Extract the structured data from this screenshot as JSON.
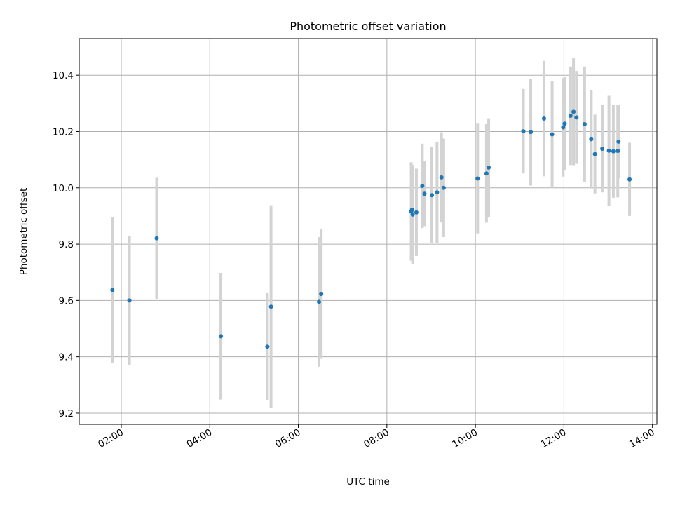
{
  "chart_data": {
    "type": "scatter",
    "title": "Photometric offset variation",
    "xlabel": "UTC time",
    "ylabel": "Photometric offset",
    "x_unit": "hours UTC",
    "xlim": [
      "01:03",
      "14:06"
    ],
    "ylim": [
      9.16,
      10.53
    ],
    "xticks": [
      "02:00",
      "04:00",
      "06:00",
      "08:00",
      "10:00",
      "12:00",
      "14:00"
    ],
    "yticks": [
      "9.2",
      "9.4",
      "9.6",
      "9.8",
      "10.0",
      "10.2",
      "10.4"
    ],
    "grid": true,
    "colors": {
      "point": "#1f77b4",
      "errorbar": "#d3d3d3",
      "grid": "#b0b0b0"
    },
    "series": [
      {
        "points": [
          {
            "x": "01:48",
            "y": 9.637,
            "err": 0.26
          },
          {
            "x": "02:11",
            "y": 9.6,
            "err": 0.23
          },
          {
            "x": "02:48",
            "y": 9.821,
            "err": 0.215
          },
          {
            "x": "04:15",
            "y": 9.473,
            "err": 0.225
          },
          {
            "x": "05:18",
            "y": 9.436,
            "err": 0.19
          },
          {
            "x": "05:23",
            "y": 9.578,
            "err": 0.36
          },
          {
            "x": "06:28",
            "y": 9.595,
            "err": 0.23
          },
          {
            "x": "06:31",
            "y": 9.623,
            "err": 0.23
          },
          {
            "x": "08:33",
            "y": 9.916,
            "err": 0.175
          },
          {
            "x": "08:34",
            "y": 9.922,
            "err": 0.16
          },
          {
            "x": "08:35",
            "y": 9.905,
            "err": 0.175
          },
          {
            "x": "08:40",
            "y": 9.913,
            "err": 0.155
          },
          {
            "x": "08:48",
            "y": 10.007,
            "err": 0.15
          },
          {
            "x": "08:51",
            "y": 9.979,
            "err": 0.115
          },
          {
            "x": "09:01",
            "y": 9.974,
            "err": 0.17
          },
          {
            "x": "09:08",
            "y": 9.984,
            "err": 0.18
          },
          {
            "x": "09:14",
            "y": 10.037,
            "err": 0.16
          },
          {
            "x": "09:17",
            "y": 10.0,
            "err": 0.175
          },
          {
            "x": "10:03",
            "y": 10.033,
            "err": 0.195
          },
          {
            "x": "10:15",
            "y": 10.051,
            "err": 0.175
          },
          {
            "x": "10:18",
            "y": 10.072,
            "err": 0.175
          },
          {
            "x": "11:05",
            "y": 10.201,
            "err": 0.15
          },
          {
            "x": "11:15",
            "y": 10.198,
            "err": 0.19
          },
          {
            "x": "11:33",
            "y": 10.246,
            "err": 0.205
          },
          {
            "x": "11:44",
            "y": 10.19,
            "err": 0.19
          },
          {
            "x": "11:59",
            "y": 10.215,
            "err": 0.175
          },
          {
            "x": "12:01",
            "y": 10.228,
            "err": 0.165
          },
          {
            "x": "12:09",
            "y": 10.256,
            "err": 0.175
          },
          {
            "x": "12:13",
            "y": 10.27,
            "err": 0.19
          },
          {
            "x": "12:17",
            "y": 10.25,
            "err": 0.165
          },
          {
            "x": "12:28",
            "y": 10.226,
            "err": 0.205
          },
          {
            "x": "12:37",
            "y": 10.173,
            "err": 0.175
          },
          {
            "x": "12:42",
            "y": 10.12,
            "err": 0.14
          },
          {
            "x": "12:52",
            "y": 10.139,
            "err": 0.155
          },
          {
            "x": "13:01",
            "y": 10.132,
            "err": 0.195
          },
          {
            "x": "13:07",
            "y": 10.13,
            "err": 0.165
          },
          {
            "x": "13:13",
            "y": 10.131,
            "err": 0.165
          },
          {
            "x": "13:14",
            "y": 10.164,
            "err": 0.13
          },
          {
            "x": "13:29",
            "y": 10.03,
            "err": 0.13
          }
        ]
      }
    ]
  }
}
